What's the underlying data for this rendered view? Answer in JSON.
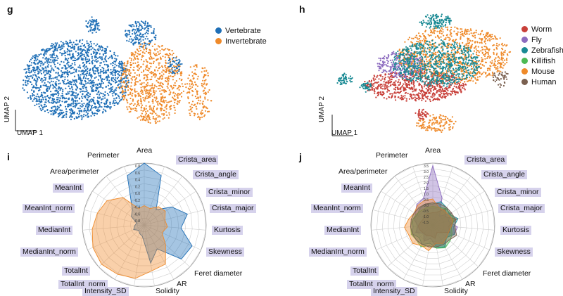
{
  "panels": {
    "g": {
      "letter": "g",
      "xlabel": "UMAP 1",
      "ylabel": "UMAP 2",
      "legend": [
        {
          "label": "Vertebrate",
          "color": "#1f6fb6"
        },
        {
          "label": "Invertebrate",
          "color": "#ef8a2a"
        }
      ]
    },
    "h": {
      "letter": "h",
      "xlabel": "UMAP 1",
      "ylabel": "UMAP 2",
      "legend": [
        {
          "label": "Worm",
          "color": "#c8403a"
        },
        {
          "label": "Fly",
          "color": "#8c6bbf"
        },
        {
          "label": "Zebrafish",
          "color": "#1a8a94"
        },
        {
          "label": "Killifish",
          "color": "#4dba54"
        },
        {
          "label": "Mouse",
          "color": "#ef8a2a"
        },
        {
          "label": "Human",
          "color": "#7a6050"
        }
      ]
    },
    "i": {
      "letter": "i",
      "ticks": [
        "0.8",
        "0.6",
        "0.4",
        "0.2",
        "0.0",
        "-0.2",
        "-0.4",
        "-0.6",
        "-0.8"
      ],
      "labels_left": [
        "Perimeter",
        "Area/perimeter",
        "MeanInt",
        "MeanInt_norm",
        "MedianInt",
        "MedianInt_norm",
        "TotalInt",
        "TotalInt_norm",
        "Intensity_SD"
      ],
      "labels_right": [
        "Area",
        "Crista_area",
        "Crista_angle",
        "Crista_minor",
        "Crista_major",
        "Kurtosis",
        "Skewness",
        "Feret diameter",
        "AR",
        "Solidity"
      ]
    },
    "j": {
      "letter": "j",
      "ticks": [
        "3.5",
        "3.0",
        "2.5",
        "2.0",
        "1.5",
        "1.0",
        "0.5",
        "0.0",
        "-0.5",
        "-1.0",
        "-1.5"
      ],
      "labels_left": [
        "Perimeter",
        "Area/perimeter",
        "MeanInt",
        "MeanInt_norm",
        "MedianInt",
        "MedianInt_norm",
        "TotalInt",
        "TotalInt_norm",
        "Intensity_SD"
      ],
      "labels_right": [
        "Area",
        "Crista_area",
        "Crista_angle",
        "Crista_minor",
        "Crista_major",
        "Kurtosis",
        "Skewness",
        "Feret diameter",
        "AR",
        "Solidity"
      ]
    }
  },
  "chart_data": [
    {
      "type": "scatter",
      "title": "g",
      "xlabel": "UMAP 1",
      "ylabel": "UMAP 2",
      "series": [
        {
          "name": "Vertebrate",
          "color": "#1f6fb6"
        },
        {
          "name": "Invertebrate",
          "color": "#ef8a2a"
        }
      ]
    },
    {
      "type": "scatter",
      "title": "h",
      "xlabel": "UMAP 1",
      "ylabel": "UMAP 2",
      "series": [
        {
          "name": "Worm",
          "color": "#c8403a"
        },
        {
          "name": "Fly",
          "color": "#8c6bbf"
        },
        {
          "name": "Zebrafish",
          "color": "#1a8a94"
        },
        {
          "name": "Killifish",
          "color": "#4dba54"
        },
        {
          "name": "Mouse",
          "color": "#ef8a2a"
        },
        {
          "name": "Human",
          "color": "#7a6050"
        }
      ]
    },
    {
      "type": "radar",
      "title": "i",
      "rlim": [
        -0.8,
        0.8
      ],
      "axes": [
        "Area",
        "Crista_area",
        "Crista_angle",
        "Crista_minor",
        "Crista_major",
        "Kurtosis",
        "Skewness",
        "Feret diameter",
        "AR",
        "Solidity",
        "Intensity_SD",
        "TotalInt_norm",
        "TotalInt",
        "MedianInt_norm",
        "MedianInt",
        "MeanInt_norm",
        "MeanInt",
        "Area/perimeter",
        "Perimeter"
      ],
      "series": [
        {
          "name": "Vertebrate",
          "color": "#1f6fb6",
          "values": [
            0.8,
            0.55,
            -0.3,
            0.05,
            0.35,
            0.15,
            0.55,
            0.5,
            -0.1,
            0.2,
            -0.5,
            -0.55,
            -0.6,
            -0.5,
            -0.55,
            -0.6,
            -0.4,
            -0.3,
            0.55
          ]
        },
        {
          "name": "Invertebrate",
          "color": "#ef8a2a",
          "values": [
            -0.3,
            -0.35,
            -0.2,
            -0.15,
            -0.25,
            -0.2,
            -0.3,
            -0.05,
            0.35,
            0.4,
            0.6,
            0.65,
            0.7,
            0.65,
            0.55,
            0.45,
            0.35,
            0.1,
            -0.35
          ]
        }
      ]
    },
    {
      "type": "radar",
      "title": "j",
      "rlim": [
        -1.5,
        3.5
      ],
      "axes": [
        "Area",
        "Crista_area",
        "Crista_angle",
        "Crista_minor",
        "Crista_major",
        "Kurtosis",
        "Skewness",
        "Feret diameter",
        "AR",
        "Solidity",
        "Intensity_SD",
        "TotalInt_norm",
        "TotalInt",
        "MedianInt_norm",
        "MedianInt",
        "MeanInt_norm",
        "MeanInt",
        "Area/perimeter",
        "Perimeter"
      ],
      "series": [
        {
          "name": "Worm",
          "color": "#c8403a",
          "values": [
            -0.5,
            -0.4,
            0.2,
            -0.3,
            0.5,
            -0.2,
            0.0,
            -0.6,
            -0.8,
            -0.4,
            -0.6,
            -0.5,
            -0.5,
            -0.4,
            -0.3,
            -0.5,
            -0.6,
            -0.4,
            -0.5
          ]
        },
        {
          "name": "Fly",
          "color": "#8c6bbf",
          "values": [
            3.3,
            0.8,
            -0.6,
            0.3,
            -0.2,
            0.5,
            0.4,
            0.0,
            0.6,
            0.3,
            -0.4,
            0.0,
            -0.5,
            0.0,
            -0.3,
            0.0,
            0.2,
            0.6,
            0.8
          ]
        },
        {
          "name": "Zebrafish",
          "color": "#1a8a94",
          "values": [
            0.2,
            0.5,
            0.3,
            0.1,
            0.6,
            0.2,
            0.4,
            0.0,
            0.5,
            0.4,
            0.0,
            0.3,
            0.0,
            0.3,
            0.1,
            0.2,
            0.0,
            0.2,
            0.3
          ]
        },
        {
          "name": "Killifish",
          "color": "#4dba54",
          "values": [
            0.0,
            0.0,
            0.2,
            0.2,
            0.3,
            0.0,
            0.2,
            0.4,
            0.6,
            0.4,
            0.2,
            0.5,
            0.3,
            0.4,
            0.3,
            0.2,
            0.1,
            0.0,
            0.0
          ]
        },
        {
          "name": "Mouse",
          "color": "#ef8a2a",
          "values": [
            0.6,
            0.0,
            0.0,
            0.0,
            0.2,
            0.0,
            -0.1,
            0.0,
            0.2,
            0.0,
            0.6,
            0.4,
            0.7,
            0.6,
            0.8,
            0.5,
            0.3,
            0.5,
            0.6
          ]
        },
        {
          "name": "Human",
          "color": "#7a6050",
          "values": [
            0.3,
            0.3,
            0.3,
            0.3,
            0.4,
            0.3,
            0.6,
            0.3,
            0.3,
            0.3,
            0.3,
            0.3,
            0.3,
            0.3,
            0.3,
            0.3,
            0.3,
            0.3,
            0.3
          ]
        }
      ]
    }
  ]
}
